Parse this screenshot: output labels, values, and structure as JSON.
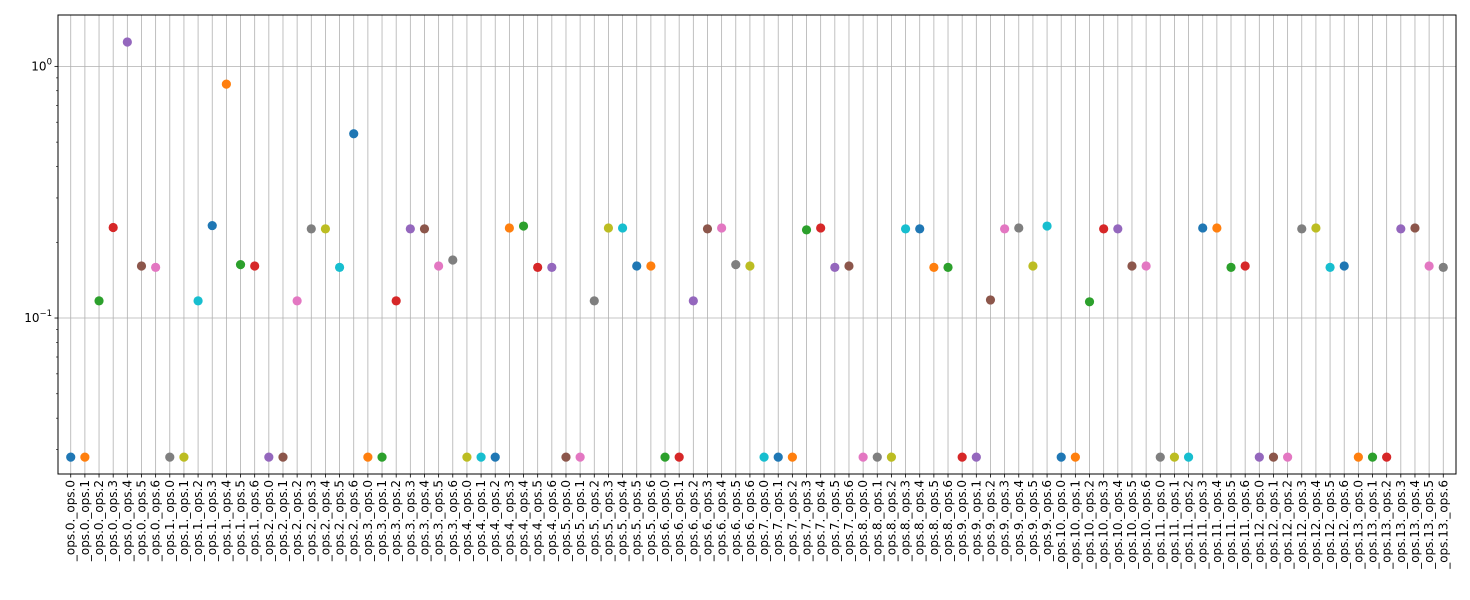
{
  "chart_data": {
    "type": "scatter",
    "title": "",
    "xlabel": "",
    "ylabel": "",
    "y_scale": "log",
    "ylim": [
      0.024,
      1.6
    ],
    "y_ticks": [
      {
        "value": 0.1,
        "base": "10",
        "exp": "−1"
      },
      {
        "value": 1,
        "base": "10",
        "exp": "0"
      }
    ],
    "grid": true,
    "legend": "none",
    "palette": [
      "#1f77b4",
      "#ff7f0e",
      "#2ca02c",
      "#d62728",
      "#9467bd",
      "#8c564b",
      "#e377c2",
      "#7f7f7f",
      "#bcbd22",
      "#17becf"
    ],
    "categories": [
      "_ops.0._ops.0",
      "_ops.0._ops.1",
      "_ops.0._ops.2",
      "_ops.0._ops.3",
      "_ops.0._ops.4",
      "_ops.0._ops.5",
      "_ops.0._ops.6",
      "_ops.1._ops.0",
      "_ops.1._ops.1",
      "_ops.1._ops.2",
      "_ops.1._ops.3",
      "_ops.1._ops.4",
      "_ops.1._ops.5",
      "_ops.1._ops.6",
      "_ops.2._ops.0",
      "_ops.2._ops.1",
      "_ops.2._ops.2",
      "_ops.2._ops.3",
      "_ops.2._ops.4",
      "_ops.2._ops.5",
      "_ops.2._ops.6",
      "_ops.3._ops.0",
      "_ops.3._ops.1",
      "_ops.3._ops.2",
      "_ops.3._ops.3",
      "_ops.3._ops.4",
      "_ops.3._ops.5",
      "_ops.3._ops.6",
      "_ops.4._ops.0",
      "_ops.4._ops.1",
      "_ops.4._ops.2",
      "_ops.4._ops.3",
      "_ops.4._ops.4",
      "_ops.4._ops.5",
      "_ops.4._ops.6",
      "_ops.5._ops.0",
      "_ops.5._ops.1",
      "_ops.5._ops.2",
      "_ops.5._ops.3",
      "_ops.5._ops.4",
      "_ops.5._ops.5",
      "_ops.5._ops.6",
      "_ops.6._ops.0",
      "_ops.6._ops.1",
      "_ops.6._ops.2",
      "_ops.6._ops.3",
      "_ops.6._ops.4",
      "_ops.6._ops.5",
      "_ops.6._ops.6",
      "_ops.7._ops.0",
      "_ops.7._ops.1",
      "_ops.7._ops.2",
      "_ops.7._ops.3",
      "_ops.7._ops.4",
      "_ops.7._ops.5",
      "_ops.7._ops.6",
      "_ops.8._ops.0",
      "_ops.8._ops.1",
      "_ops.8._ops.2",
      "_ops.8._ops.3",
      "_ops.8._ops.4",
      "_ops.8._ops.5",
      "_ops.8._ops.6",
      "_ops.9._ops.0",
      "_ops.9._ops.1",
      "_ops.9._ops.2",
      "_ops.9._ops.3",
      "_ops.9._ops.4",
      "_ops.9._ops.5",
      "_ops.9._ops.6",
      "_ops.10._ops.0",
      "_ops.10._ops.1",
      "_ops.10._ops.2",
      "_ops.10._ops.3",
      "_ops.10._ops.4",
      "_ops.10._ops.5",
      "_ops.10._ops.6",
      "_ops.11._ops.0",
      "_ops.11._ops.1",
      "_ops.11._ops.2",
      "_ops.11._ops.3",
      "_ops.11._ops.4",
      "_ops.11._ops.5",
      "_ops.11._ops.6",
      "_ops.12._ops.0",
      "_ops.12._ops.1",
      "_ops.12._ops.2",
      "_ops.12._ops.3",
      "_ops.12._ops.4",
      "_ops.12._ops.5",
      "_ops.12._ops.6",
      "_ops.13._ops.0",
      "_ops.13._ops.1",
      "_ops.13._ops.2",
      "_ops.13._ops.3",
      "_ops.13._ops.4",
      "_ops.13._ops.5",
      "_ops.13._ops.6"
    ],
    "values": [
      0.028,
      0.028,
      0.117,
      0.229,
      1.25,
      0.161,
      0.159,
      0.028,
      0.028,
      0.117,
      0.233,
      0.85,
      0.163,
      0.161,
      0.028,
      0.028,
      0.117,
      0.226,
      0.226,
      0.159,
      0.54,
      0.028,
      0.028,
      0.117,
      0.226,
      0.226,
      0.161,
      0.17,
      0.028,
      0.028,
      0.028,
      0.228,
      0.232,
      0.159,
      0.159,
      0.028,
      0.028,
      0.117,
      0.228,
      0.228,
      0.161,
      0.161,
      0.028,
      0.028,
      0.117,
      0.226,
      0.228,
      0.163,
      0.161,
      0.028,
      0.028,
      0.028,
      0.224,
      0.228,
      0.159,
      0.161,
      0.028,
      0.028,
      0.028,
      0.226,
      0.226,
      0.159,
      0.159,
      0.028,
      0.028,
      0.118,
      0.226,
      0.228,
      0.161,
      0.232,
      0.028,
      0.028,
      0.116,
      0.226,
      0.226,
      0.161,
      0.161,
      0.028,
      0.028,
      0.028,
      0.228,
      0.228,
      0.159,
      0.161,
      0.028,
      0.028,
      0.028,
      0.226,
      0.228,
      0.159,
      0.161,
      0.028,
      0.028,
      0.028,
      0.226,
      0.228,
      0.161,
      0.159
    ]
  }
}
